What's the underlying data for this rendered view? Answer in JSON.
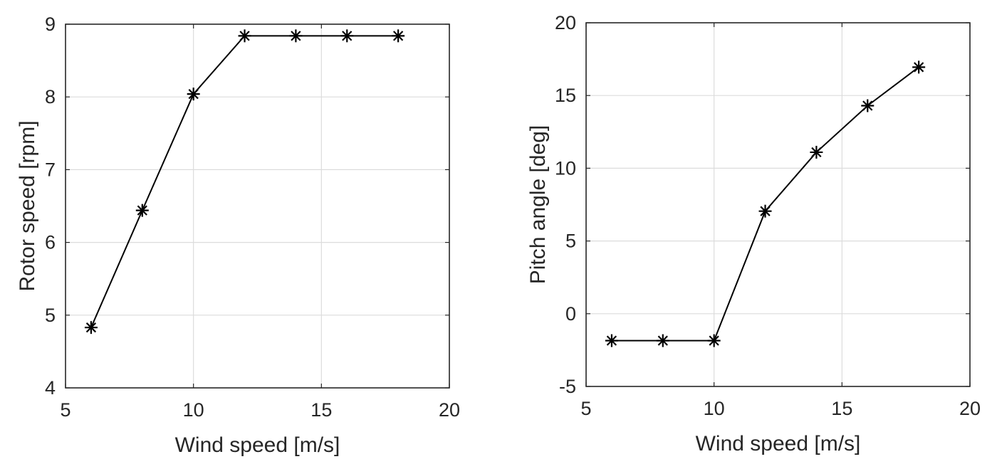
{
  "chart_data": [
    {
      "type": "line",
      "title": "",
      "xlabel": "Wind speed [m/s]",
      "ylabel": "Rotor speed [rpm]",
      "xlim": [
        5,
        20
      ],
      "ylim": [
        4,
        9
      ],
      "xticks": [
        "5",
        "10",
        "15",
        "20"
      ],
      "yticks": [
        "4",
        "5",
        "6",
        "7",
        "8",
        "9"
      ],
      "grid": true,
      "marker": "asterisk",
      "series": [
        {
          "name": "Rotor speed",
          "x": [
            6,
            8,
            10,
            12,
            14,
            16,
            18
          ],
          "y": [
            4.83,
            6.44,
            8.04,
            8.84,
            8.84,
            8.84,
            8.84
          ]
        }
      ]
    },
    {
      "type": "line",
      "title": "",
      "xlabel": "Wind speed [m/s]",
      "ylabel": "Pitch angle [deg]",
      "xlim": [
        5,
        20
      ],
      "ylim": [
        -5,
        20
      ],
      "xticks": [
        "5",
        "10",
        "15",
        "20"
      ],
      "yticks": [
        "-5",
        "0",
        "5",
        "10",
        "15",
        "20"
      ],
      "grid": true,
      "marker": "asterisk",
      "series": [
        {
          "name": "Pitch angle",
          "x": [
            6,
            8,
            10,
            12,
            14,
            16,
            18
          ],
          "y": [
            -1.85,
            -1.85,
            -1.85,
            7.05,
            11.1,
            14.3,
            16.95
          ]
        }
      ]
    }
  ],
  "style": {
    "line_color": "#000000",
    "grid_color": "#dcdcdc",
    "axis_color": "#262626"
  }
}
